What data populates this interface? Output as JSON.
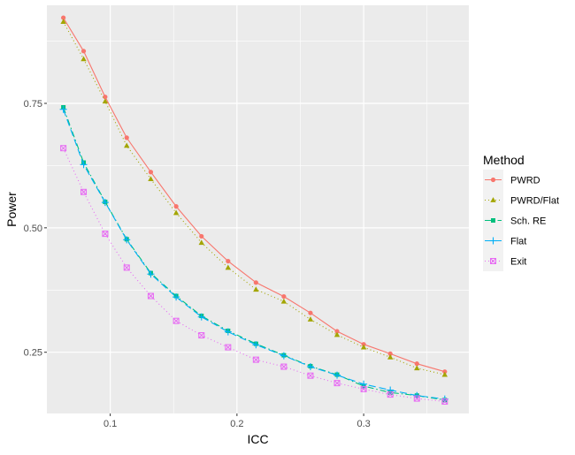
{
  "chart_data": {
    "type": "line",
    "xlabel": "ICC",
    "ylabel": "Power",
    "xlim": [
      0.05,
      0.383
    ],
    "ylim": [
      0.127,
      0.947
    ],
    "x_ticks": [
      0.1,
      0.2,
      0.3
    ],
    "x_tick_labels": [
      "0.1",
      "0.2",
      "0.3"
    ],
    "y_ticks": [
      0.25,
      0.5,
      0.75
    ],
    "y_tick_labels": [
      "0.25",
      "0.50",
      "0.75"
    ],
    "grid": true,
    "background": "#ebebeb",
    "legend": {
      "title": "Method",
      "position": "right"
    },
    "x": [
      0.063,
      0.079,
      0.096,
      0.113,
      0.132,
      0.152,
      0.172,
      0.193,
      0.215,
      0.237,
      0.258,
      0.279,
      0.3,
      0.321,
      0.342,
      0.364
    ],
    "series": [
      {
        "name": "PWRD",
        "color": "#F8766D",
        "dash": "solid",
        "marker": "circle",
        "values": [
          0.922,
          0.855,
          0.763,
          0.681,
          0.612,
          0.543,
          0.483,
          0.433,
          0.39,
          0.362,
          0.329,
          0.292,
          0.266,
          0.247,
          0.227,
          0.211
        ]
      },
      {
        "name": "PWRD/Flat",
        "color": "#A3A500",
        "dash": "dotted",
        "marker": "triangle",
        "values": [
          0.914,
          0.839,
          0.754,
          0.665,
          0.598,
          0.53,
          0.47,
          0.42,
          0.376,
          0.352,
          0.316,
          0.285,
          0.26,
          0.24,
          0.218,
          0.205
        ]
      },
      {
        "name": "Sch. RE",
        "color": "#00BF7D",
        "dash": "dashdot",
        "marker": "square",
        "values": [
          0.742,
          0.631,
          0.552,
          0.477,
          0.409,
          0.363,
          0.323,
          0.293,
          0.267,
          0.244,
          0.222,
          0.205,
          0.182,
          0.169,
          0.163,
          0.154
        ]
      },
      {
        "name": "Flat",
        "color": "#00B0F6",
        "dash": "longdash",
        "marker": "plus",
        "values": [
          0.738,
          0.627,
          0.551,
          0.476,
          0.407,
          0.361,
          0.321,
          0.291,
          0.265,
          0.243,
          0.221,
          0.204,
          0.186,
          0.174,
          0.163,
          0.156
        ]
      },
      {
        "name": "Exit",
        "color": "#E76BF3",
        "dash": "dotted",
        "marker": "boxx",
        "values": [
          0.66,
          0.572,
          0.488,
          0.42,
          0.363,
          0.313,
          0.284,
          0.26,
          0.235,
          0.221,
          0.203,
          0.188,
          0.176,
          0.165,
          0.157,
          0.151
        ]
      }
    ]
  }
}
